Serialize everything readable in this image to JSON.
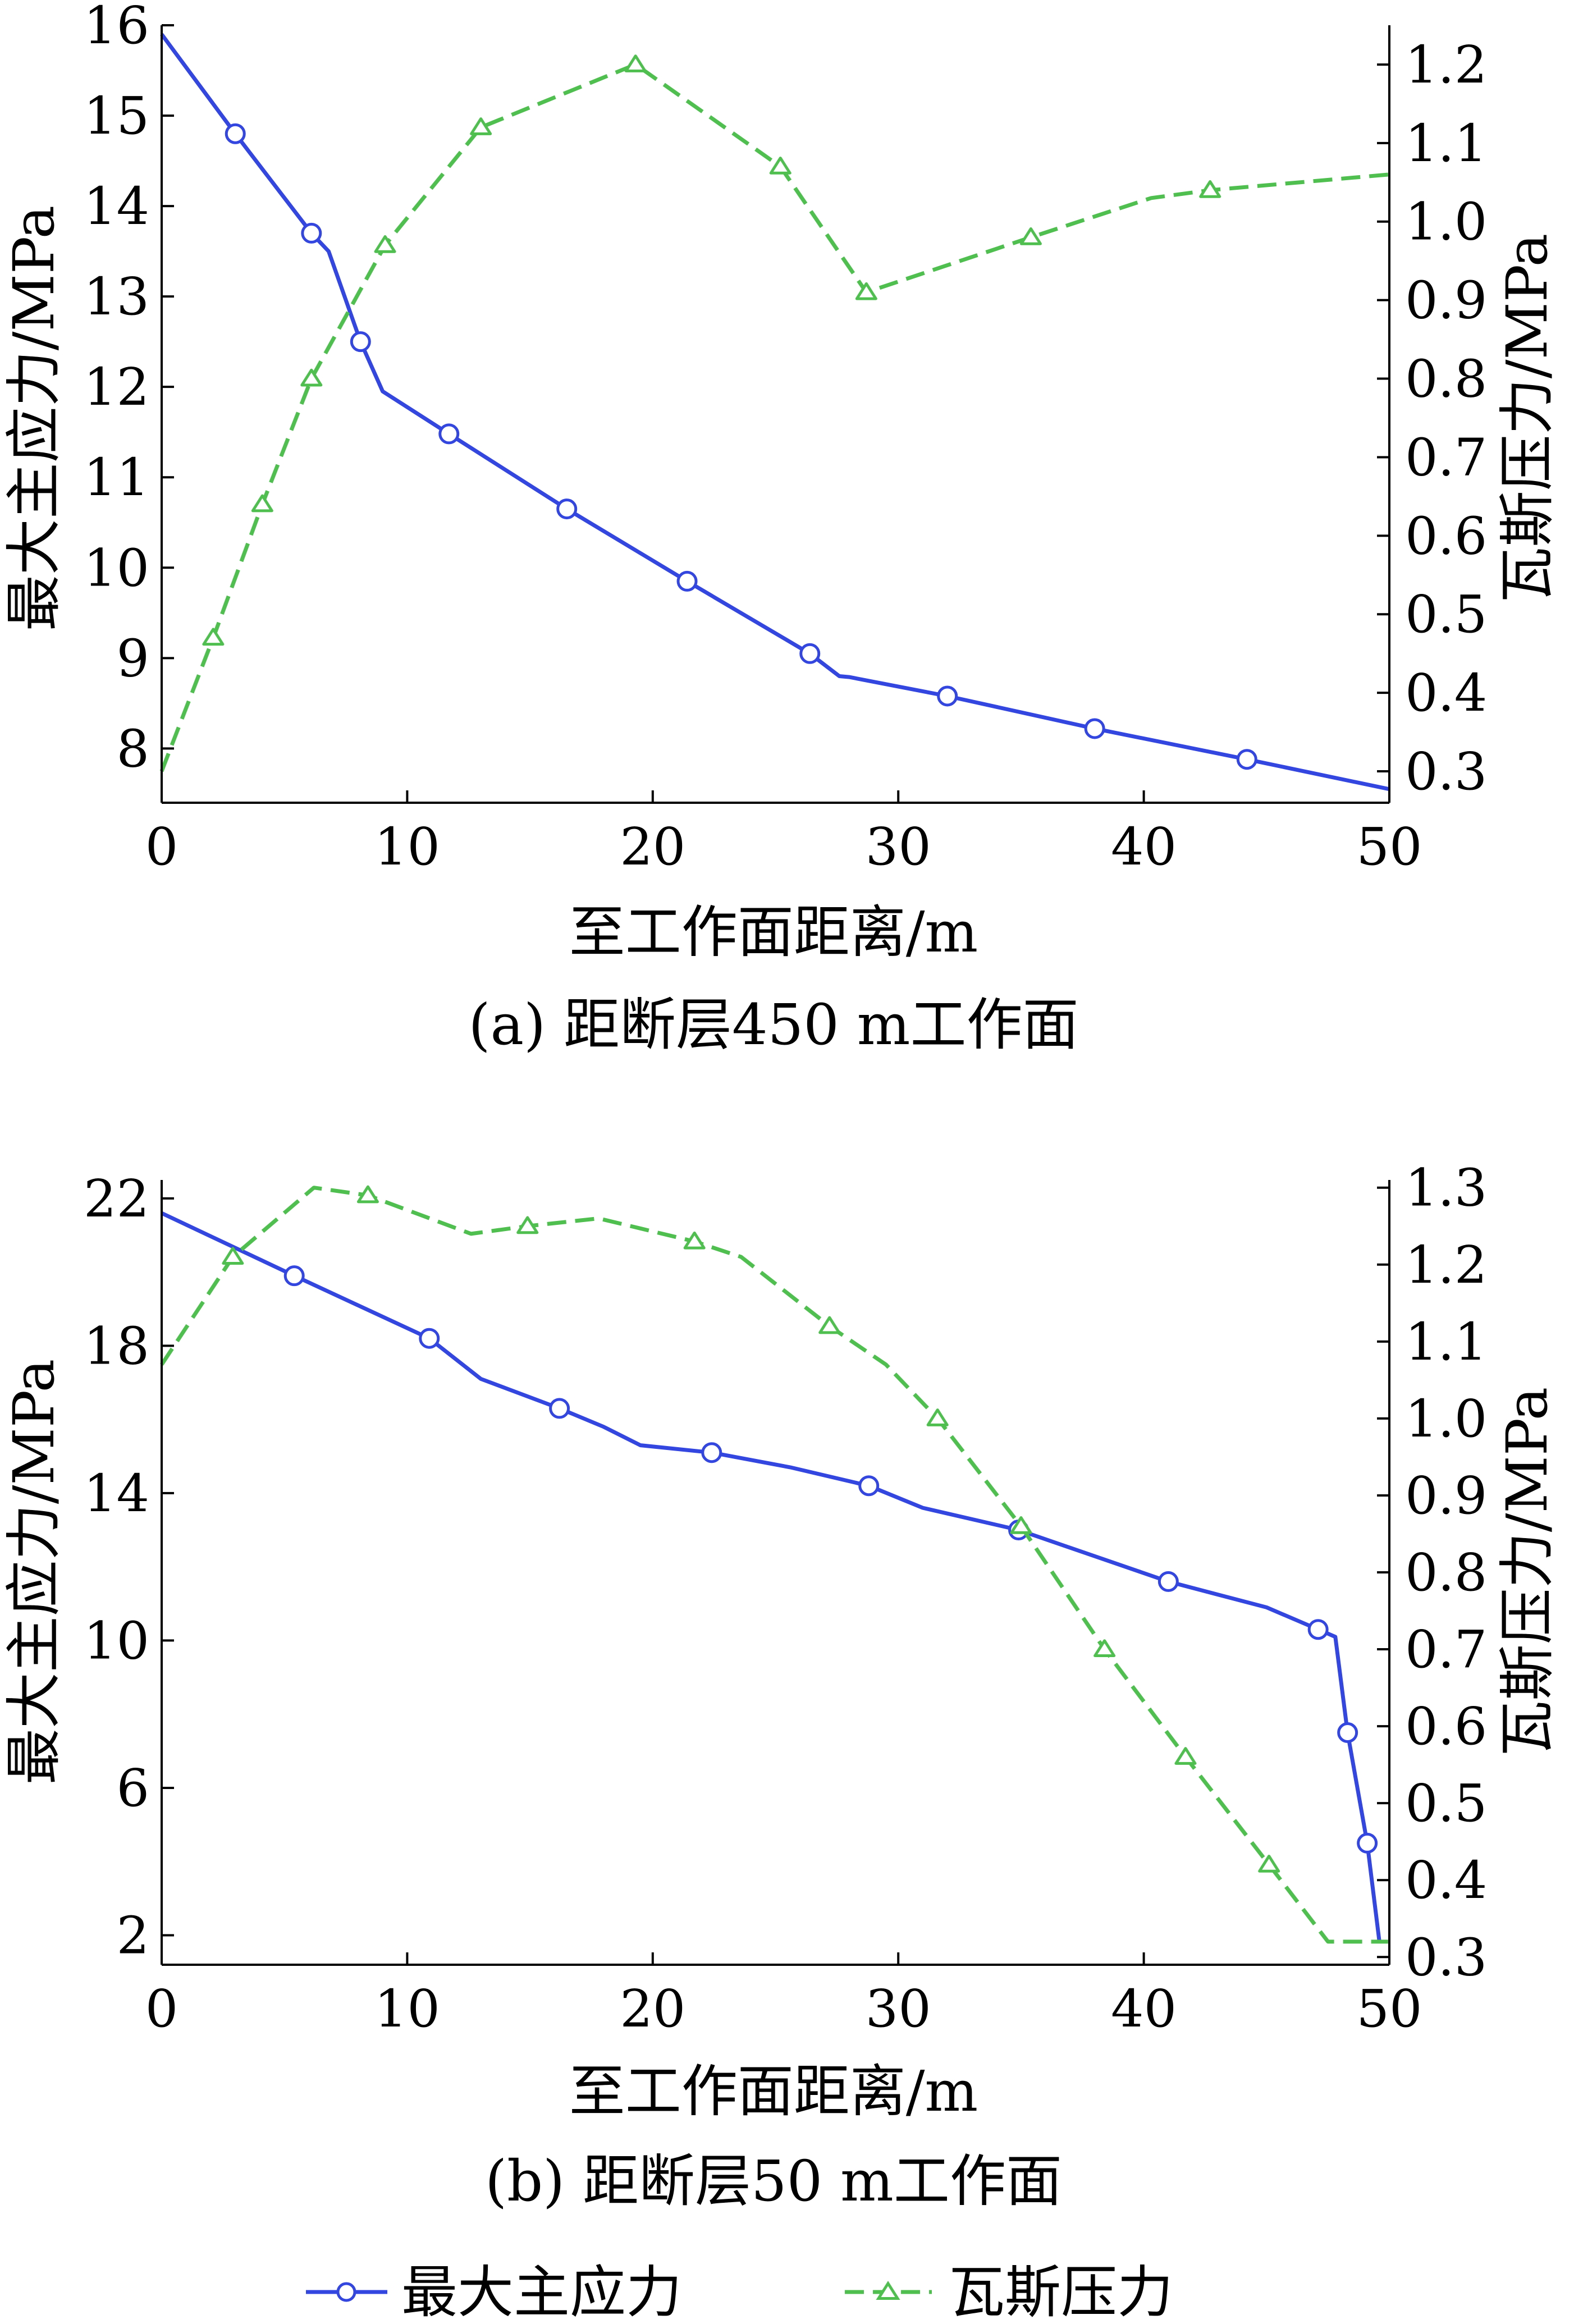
{
  "colors": {
    "stress": "#3346e0",
    "gas": "#4fbf4f",
    "axis": "#000000"
  },
  "legend": {
    "stress_label": "最大主应力",
    "gas_label": "瓦斯压力"
  },
  "chart_data": [
    {
      "type": "line",
      "caption": "(a)  距断层450 m工作面",
      "xlabel": "至工作面距离/m",
      "ylabel_left": "最大主应力/MPa",
      "ylabel_right": "瓦斯压力/MPa",
      "xlim": [
        0,
        50
      ],
      "ylim_left": [
        7.4,
        16.0
      ],
      "ylim_right": [
        0.26,
        1.25
      ],
      "xticks": [
        0,
        10,
        20,
        30,
        40,
        50
      ],
      "yticks_left": [
        8,
        9,
        10,
        11,
        12,
        13,
        14,
        15,
        16
      ],
      "yticks_right": [
        0.3,
        0.4,
        0.5,
        0.6,
        0.7,
        0.8,
        0.9,
        1.0,
        1.1,
        1.2
      ],
      "yticks_right_labels": [
        "0.3",
        "0.4",
        "0.5",
        "0.6",
        "0.7",
        "0.8",
        "0.9",
        "1.0",
        "1.1",
        "1.2"
      ],
      "series": [
        {
          "name": "最大主应力",
          "axis": "left",
          "style": "solid",
          "marker": "circle",
          "points": [
            [
              0,
              15.9
            ],
            [
              3,
              14.8
            ],
            [
              6.1,
              13.7
            ],
            [
              6.8,
              13.5
            ],
            [
              8.1,
              12.5
            ],
            [
              9,
              11.95
            ],
            [
              11.7,
              11.48
            ],
            [
              16.5,
              10.65
            ],
            [
              21.4,
              9.85
            ],
            [
              26.4,
              9.05
            ],
            [
              27.6,
              8.8
            ],
            [
              28,
              8.79
            ],
            [
              32,
              8.58
            ],
            [
              38,
              8.22
            ],
            [
              44.2,
              7.88
            ],
            [
              50,
              7.55
            ]
          ],
          "marker_points": [
            [
              3,
              14.8
            ],
            [
              6.1,
              13.7
            ],
            [
              8.1,
              12.5
            ],
            [
              11.7,
              11.48
            ],
            [
              16.5,
              10.65
            ],
            [
              21.4,
              9.85
            ],
            [
              26.4,
              9.05
            ],
            [
              32,
              8.58
            ],
            [
              38,
              8.22
            ],
            [
              44.2,
              7.88
            ]
          ]
        },
        {
          "name": "瓦斯压力",
          "axis": "right",
          "style": "dashed",
          "marker": "triangle",
          "points": [
            [
              0,
              0.3
            ],
            [
              2.1,
              0.47
            ],
            [
              4.1,
              0.64
            ],
            [
              6.1,
              0.8
            ],
            [
              9.1,
              0.97
            ],
            [
              13,
              1.12
            ],
            [
              19.3,
              1.2
            ],
            [
              25.2,
              1.07
            ],
            [
              28.7,
              0.91
            ],
            [
              35.4,
              0.98
            ],
            [
              40.3,
              1.03
            ],
            [
              42.7,
              1.04
            ],
            [
              50,
              1.06
            ]
          ],
          "marker_points": [
            [
              2.1,
              0.47
            ],
            [
              4.1,
              0.64
            ],
            [
              6.1,
              0.8
            ],
            [
              9.1,
              0.97
            ],
            [
              13,
              1.12
            ],
            [
              19.3,
              1.2
            ],
            [
              25.2,
              1.07
            ],
            [
              28.7,
              0.91
            ],
            [
              35.4,
              0.98
            ],
            [
              42.7,
              1.04
            ]
          ]
        }
      ]
    },
    {
      "type": "line",
      "caption": "(b)  距断层50 m工作面",
      "xlabel": "至工作面距离/m",
      "ylabel_left": "最大主应力/MPa",
      "ylabel_right": "瓦斯压力/MPa",
      "xlim": [
        0,
        50
      ],
      "ylim_left": [
        1.2,
        22.5
      ],
      "ylim_right": [
        0.29,
        1.31
      ],
      "xticks": [
        0,
        10,
        20,
        30,
        40,
        50
      ],
      "yticks_left": [
        2,
        6,
        10,
        14,
        18,
        22
      ],
      "yticks_right": [
        0.3,
        0.4,
        0.5,
        0.6,
        0.7,
        0.8,
        0.9,
        1.0,
        1.1,
        1.2,
        1.3
      ],
      "yticks_right_labels": [
        "0.3",
        "0.4",
        "0.5",
        "0.6",
        "0.7",
        "0.8",
        "0.9",
        "1.0",
        "1.1",
        "1.2",
        "1.3"
      ],
      "series": [
        {
          "name": "最大主应力",
          "axis": "left",
          "style": "solid",
          "marker": "circle",
          "points": [
            [
              0,
              21.6
            ],
            [
              5.4,
              19.9
            ],
            [
              10.9,
              18.2
            ],
            [
              13,
              17.1
            ],
            [
              16.2,
              16.3
            ],
            [
              18,
              15.8
            ],
            [
              19.5,
              15.3
            ],
            [
              22.4,
              15.1
            ],
            [
              25.6,
              14.7
            ],
            [
              28.8,
              14.2
            ],
            [
              31,
              13.6
            ],
            [
              34.9,
              13.0
            ],
            [
              41,
              11.6
            ],
            [
              45,
              10.9
            ],
            [
              47.1,
              10.3
            ],
            [
              47.8,
              10.1
            ],
            [
              48.3,
              7.5
            ],
            [
              49.1,
              4.5
            ],
            [
              49.6,
              1.8
            ]
          ],
          "marker_points": [
            [
              5.4,
              19.9
            ],
            [
              10.9,
              18.2
            ],
            [
              16.2,
              16.3
            ],
            [
              22.4,
              15.1
            ],
            [
              28.8,
              14.2
            ],
            [
              34.9,
              13.0
            ],
            [
              41,
              11.6
            ],
            [
              47.1,
              10.3
            ],
            [
              48.3,
              7.5
            ],
            [
              49.1,
              4.5
            ]
          ]
        },
        {
          "name": "瓦斯压力",
          "axis": "right",
          "style": "dashed",
          "marker": "triangle",
          "points": [
            [
              0,
              1.07
            ],
            [
              2.9,
              1.21
            ],
            [
              6.2,
              1.3
            ],
            [
              8.4,
              1.29
            ],
            [
              12.6,
              1.24
            ],
            [
              14.9,
              1.25
            ],
            [
              17.8,
              1.26
            ],
            [
              21.7,
              1.23
            ],
            [
              23.6,
              1.21
            ],
            [
              27.2,
              1.12
            ],
            [
              29.5,
              1.07
            ],
            [
              31.6,
              1.0
            ],
            [
              35,
              0.86
            ],
            [
              38.4,
              0.7
            ],
            [
              41.7,
              0.56
            ],
            [
              45.1,
              0.42
            ],
            [
              47.5,
              0.32
            ],
            [
              50,
              0.32
            ]
          ],
          "marker_points": [
            [
              2.9,
              1.21
            ],
            [
              8.4,
              1.29
            ],
            [
              14.9,
              1.25
            ],
            [
              21.7,
              1.23
            ],
            [
              27.2,
              1.12
            ],
            [
              31.6,
              1.0
            ],
            [
              35,
              0.86
            ],
            [
              38.4,
              0.7
            ],
            [
              41.7,
              0.56
            ],
            [
              45.1,
              0.42
            ]
          ]
        }
      ]
    }
  ]
}
